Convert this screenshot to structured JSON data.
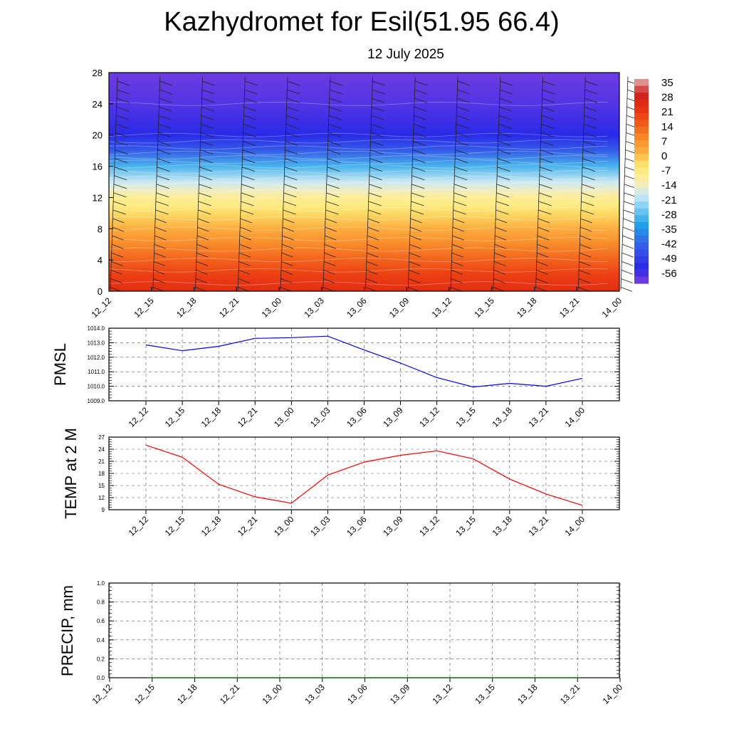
{
  "title": "Kazhydromet for Esil(51.95 66.4)",
  "subtitle": "12 July 2025",
  "chart_data": [
    {
      "type": "heatmap",
      "x_ticks": [
        "12_12",
        "12_15",
        "12_18",
        "12_21",
        "13_00",
        "13_03",
        "13_06",
        "13_09",
        "13_12",
        "13_15",
        "13_18",
        "13_21",
        "14_00"
      ],
      "y_ticks": [
        "0",
        "4",
        "8",
        "12",
        "16",
        "20",
        "24",
        "28"
      ],
      "ylim": [
        0,
        28
      ],
      "colorbar_labels": [
        "35",
        "28",
        "21",
        "14",
        "7",
        "0",
        "-7",
        "-14",
        "-21",
        "-28",
        "-35",
        "-42",
        "-49",
        "-56"
      ],
      "colorbar_stops": [
        "#e8b0b0",
        "#d02020",
        "#e83010",
        "#f05818",
        "#f88828",
        "#fcb040",
        "#fce870",
        "#fff0a8",
        "#c8e8f8",
        "#70c8f0",
        "#20a0e8",
        "#3070e8",
        "#3848e8",
        "#2828e8",
        "#8040e0"
      ],
      "profile_levels": [
        0,
        2,
        4,
        6,
        8,
        10,
        11,
        12,
        13,
        14,
        16,
        18,
        20,
        24,
        28
      ],
      "profile_values": [
        26,
        22,
        16,
        10,
        4,
        -2,
        -6,
        -8,
        -13,
        -17,
        -28,
        -42,
        -52,
        -56,
        -58
      ],
      "wind_barbs": "present"
    },
    {
      "type": "line",
      "ylabel": "PMSL",
      "x_ticks": [
        "12_12",
        "12_15",
        "12_18",
        "12_21",
        "13_00",
        "13_03",
        "13_06",
        "13_09",
        "13_12",
        "13_15",
        "13_18",
        "13_21",
        "14_00"
      ],
      "y_ticks": [
        "1009.0",
        "1010.0",
        "1011.0",
        "1012.0",
        "1013.0",
        "1014.0"
      ],
      "ylim": [
        1009,
        1014
      ],
      "series": [
        {
          "color": "#0000ff",
          "values": [
            1012.85,
            1012.45,
            1012.75,
            1013.3,
            1013.35,
            1013.45,
            1012.5,
            1011.6,
            1010.6,
            1009.95,
            1010.2,
            1010.0,
            1010.55
          ]
        }
      ]
    },
    {
      "type": "line",
      "ylabel": "TEMP at 2 M",
      "x_ticks": [
        "12_12",
        "12_15",
        "12_18",
        "12_21",
        "13_00",
        "13_03",
        "13_06",
        "13_09",
        "13_12",
        "13_15",
        "13_18",
        "13_21",
        "14_00"
      ],
      "y_ticks": [
        "9",
        "12",
        "15",
        "18",
        "21",
        "24",
        "27"
      ],
      "ylim": [
        9,
        27
      ],
      "series": [
        {
          "color": "#ff0000",
          "values": [
            25.0,
            22.0,
            15.3,
            12.2,
            10.6,
            17.6,
            20.8,
            22.5,
            23.6,
            21.6,
            16.6,
            12.9,
            10.1
          ]
        }
      ]
    },
    {
      "type": "line",
      "ylabel": "PRECIP, mm",
      "x_ticks": [
        "12_12",
        "12_15",
        "12_18",
        "12_21",
        "13_00",
        "13_03",
        "13_06",
        "13_09",
        "13_12",
        "13_15",
        "13_18",
        "13_21",
        "14_00"
      ],
      "y_ticks": [
        "0.0",
        "0.2",
        "0.4",
        "0.6",
        "0.8",
        "1.0"
      ],
      "ylim": [
        0,
        1
      ],
      "series": [
        {
          "color": "#006400",
          "values": [
            0,
            0,
            0,
            0,
            0,
            0,
            0,
            0,
            0,
            0,
            0,
            0,
            0
          ]
        }
      ]
    }
  ]
}
